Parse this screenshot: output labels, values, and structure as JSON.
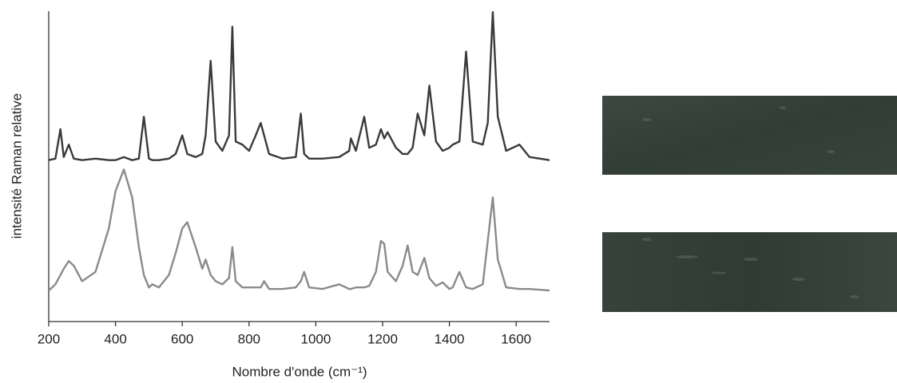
{
  "chart_data": {
    "type": "line",
    "x_label": "Nombre d'onde (cm⁻¹)",
    "y_label": "intensité Raman relative",
    "x": [
      200,
      220,
      235,
      245,
      260,
      275,
      300,
      340,
      380,
      400,
      425,
      450,
      470,
      485,
      500,
      510,
      530,
      560,
      580,
      600,
      615,
      640,
      660,
      670,
      685,
      700,
      720,
      740,
      750,
      760,
      780,
      800,
      820,
      835,
      845,
      860,
      900,
      940,
      955,
      965,
      980,
      1020,
      1070,
      1100,
      1105,
      1120,
      1145,
      1160,
      1180,
      1195,
      1205,
      1215,
      1240,
      1260,
      1275,
      1290,
      1305,
      1325,
      1340,
      1360,
      1380,
      1400,
      1410,
      1430,
      1450,
      1470,
      1500,
      1515,
      1530,
      1545,
      1570,
      1610,
      1640,
      1700
    ],
    "series": [
      {
        "color": "#3a3a3a",
        "values": [
          52,
          52.5,
          62,
          53,
          57,
          52.5,
          52,
          52.5,
          52,
          52,
          53,
          52,
          52.5,
          66,
          52.5,
          52,
          52,
          52.5,
          54,
          60,
          54,
          53,
          54,
          60,
          84,
          58,
          55,
          60,
          95,
          58,
          57,
          55,
          60,
          64,
          60,
          54,
          52.5,
          53,
          67,
          54,
          52.5,
          52.5,
          53,
          55,
          59,
          55,
          66,
          56,
          57,
          62,
          59,
          61,
          56,
          54,
          54,
          56,
          67,
          60,
          76,
          58,
          55,
          56,
          57,
          58,
          87,
          58,
          57,
          64,
          99.7,
          66,
          55,
          57,
          53,
          52
        ]
      },
      {
        "color": "#8a8a8a",
        "values": [
          10,
          12,
          15,
          17,
          19.5,
          18,
          13,
          16,
          30,
          42,
          49,
          40,
          24,
          15,
          11,
          12,
          11,
          15,
          22,
          30,
          32,
          24,
          17,
          20,
          15,
          13,
          12,
          14,
          24,
          13,
          11,
          11,
          11,
          11,
          13,
          10.5,
          10.5,
          11,
          13,
          16,
          11,
          10.5,
          12,
          10.5,
          10.5,
          11,
          11,
          11.5,
          16,
          26,
          25,
          16,
          13,
          18,
          24.5,
          16,
          15,
          20.5,
          14,
          11.5,
          12.6,
          10.5,
          11,
          16,
          11,
          10.5,
          12,
          26,
          40,
          20,
          11,
          10.5,
          10.5,
          10
        ]
      }
    ],
    "xlim": [
      200,
      1700
    ],
    "xticks": [
      200,
      400,
      600,
      800,
      1000,
      1200,
      1400,
      1600
    ],
    "ylim": [
      0,
      100
    ]
  }
}
